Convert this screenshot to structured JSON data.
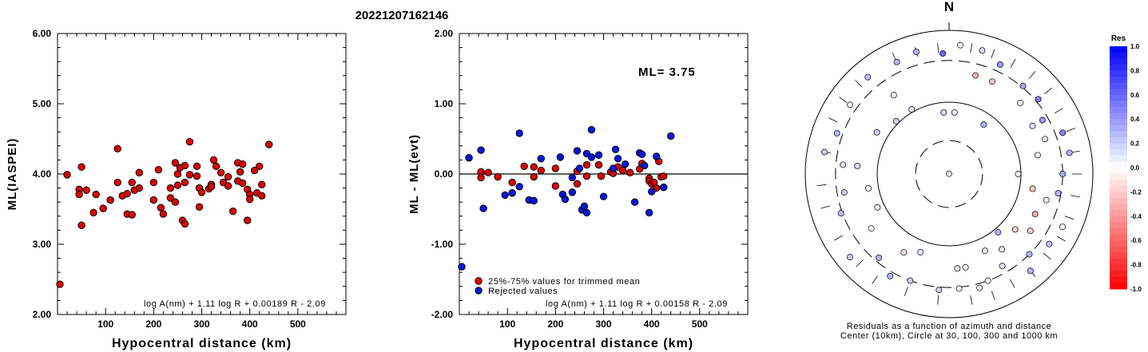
{
  "title": "20221207162146",
  "colors": {
    "red": "#e00000",
    "blue": "#0018e0",
    "black": "#000000"
  },
  "chart_data": [
    {
      "type": "scatter",
      "xlabel": "Hypocentral distance (km)",
      "ylabel": "ML(IASPEI)",
      "xlim": [
        0,
        600
      ],
      "ylim": [
        2.0,
        6.0
      ],
      "x_ticks": [
        100,
        200,
        300,
        400,
        500
      ],
      "y_ticks": [
        "2.00",
        "3.00",
        "4.00",
        "5.00",
        "6.00"
      ],
      "formula": "log A(nm) + 1.11 log R + 0.00189 R - 2.09",
      "series": [
        {
          "color": "red",
          "points": [
            [
              5,
              2.43
            ],
            [
              20,
              3.99
            ],
            [
              45,
              3.78
            ],
            [
              45,
              3.71
            ],
            [
              50,
              4.1
            ],
            [
              50,
              3.27
            ],
            [
              60,
              3.77
            ],
            [
              75,
              3.45
            ],
            [
              80,
              3.71
            ],
            [
              95,
              3.51
            ],
            [
              110,
              3.63
            ],
            [
              125,
              4.36
            ],
            [
              125,
              3.88
            ],
            [
              135,
              3.69
            ],
            [
              145,
              3.43
            ],
            [
              145,
              3.72
            ],
            [
              155,
              3.42
            ],
            [
              155,
              3.88
            ],
            [
              160,
              3.77
            ],
            [
              170,
              4.02
            ],
            [
              170,
              3.8
            ],
            [
              200,
              3.88
            ],
            [
              200,
              3.63
            ],
            [
              210,
              4.06
            ],
            [
              215,
              3.52
            ],
            [
              220,
              3.43
            ],
            [
              235,
              3.8
            ],
            [
              235,
              3.66
            ],
            [
              245,
              3.6
            ],
            [
              245,
              4.16
            ],
            [
              250,
              3.84
            ],
            [
              250,
              4.0
            ],
            [
              255,
              4.09
            ],
            [
              260,
              3.34
            ],
            [
              265,
              3.29
            ],
            [
              265,
              4.12
            ],
            [
              265,
              3.88
            ],
            [
              275,
              4.46
            ],
            [
              275,
              3.99
            ],
            [
              290,
              4.11
            ],
            [
              290,
              3.97
            ],
            [
              295,
              3.8
            ],
            [
              295,
              3.53
            ],
            [
              300,
              3.74
            ],
            [
              315,
              3.79
            ],
            [
              320,
              3.85
            ],
            [
              320,
              3.82
            ],
            [
              325,
              4.2
            ],
            [
              330,
              4.11
            ],
            [
              340,
              4.02
            ],
            [
              345,
              3.88
            ],
            [
              355,
              3.96
            ],
            [
              355,
              3.83
            ],
            [
              365,
              3.47
            ],
            [
              375,
              4.16
            ],
            [
              375,
              3.9
            ],
            [
              380,
              4.03
            ],
            [
              385,
              4.14
            ],
            [
              385,
              3.87
            ],
            [
              395,
              3.78
            ],
            [
              395,
              3.34
            ],
            [
              400,
              3.71
            ],
            [
              400,
              3.64
            ],
            [
              410,
              4.05
            ],
            [
              415,
              3.73
            ],
            [
              420,
              4.11
            ],
            [
              425,
              3.85
            ],
            [
              425,
              3.69
            ],
            [
              440,
              4.42
            ]
          ]
        }
      ]
    },
    {
      "type": "scatter",
      "xlabel": "Hypocentral distance (km)",
      "ylabel": "ML - ML(evt)",
      "xlim": [
        0,
        600
      ],
      "ylim": [
        -2.0,
        2.0
      ],
      "x_ticks": [
        100,
        200,
        300,
        400,
        500
      ],
      "y_ticks": [
        "-2.00",
        "-1.00",
        "0.00",
        "1.00",
        "2.00"
      ],
      "zero_line": 0,
      "annotation": "ML= 3.75",
      "legend": [
        {
          "label": "25%-75% values for trimmed mean",
          "color": "red"
        },
        {
          "label": "Rejected values",
          "color": "blue"
        }
      ],
      "formula": "log A(nm) + 1.11 log R + 0.00158 R - 2.09",
      "series": [
        {
          "color": "red",
          "points": [
            [
              45,
              0.03
            ],
            [
              45,
              -0.05
            ],
            [
              60,
              0.02
            ],
            [
              80,
              -0.04
            ],
            [
              110,
              -0.12
            ],
            [
              135,
              0.11
            ],
            [
              155,
              0.1
            ],
            [
              155,
              -0.04
            ],
            [
              170,
              0.05
            ],
            [
              200,
              0.08
            ],
            [
              200,
              -0.17
            ],
            [
              245,
              0.04
            ],
            [
              245,
              -0.14
            ],
            [
              265,
              0.13
            ],
            [
              265,
              -0.03
            ],
            [
              290,
              0.13
            ],
            [
              295,
              -0.03
            ],
            [
              315,
              0.03
            ],
            [
              320,
              0.01
            ],
            [
              330,
              0.1
            ],
            [
              340,
              0.05
            ],
            [
              355,
              0.02
            ],
            [
              375,
              0.07
            ],
            [
              380,
              0.15
            ],
            [
              395,
              -0.06
            ],
            [
              395,
              -0.1
            ],
            [
              400,
              -0.14
            ],
            [
              405,
              -0.12
            ],
            [
              410,
              -0.2
            ],
            [
              415,
              0.18
            ],
            [
              420,
              -0.04
            ],
            [
              425,
              -0.19
            ],
            [
              425,
              -0.03
            ]
          ]
        },
        {
          "color": "blue",
          "points": [
            [
              5,
              -1.32
            ],
            [
              20,
              0.23
            ],
            [
              45,
              0.34
            ],
            [
              50,
              -0.49
            ],
            [
              95,
              -0.3
            ],
            [
              110,
              -0.27
            ],
            [
              125,
              0.58
            ],
            [
              125,
              -0.18
            ],
            [
              145,
              -0.37
            ],
            [
              155,
              -0.38
            ],
            [
              170,
              0.22
            ],
            [
              210,
              0.24
            ],
            [
              215,
              -0.29
            ],
            [
              220,
              -0.36
            ],
            [
              235,
              -0.05
            ],
            [
              235,
              -0.26
            ],
            [
              245,
              0.33
            ],
            [
              250,
              0.08
            ],
            [
              255,
              -0.51
            ],
            [
              260,
              -0.46
            ],
            [
              265,
              0.29
            ],
            [
              265,
              -0.55
            ],
            [
              275,
              0.63
            ],
            [
              275,
              0.24
            ],
            [
              290,
              0.27
            ],
            [
              300,
              -0.32
            ],
            [
              320,
              0.08
            ],
            [
              325,
              0.35
            ],
            [
              330,
              0.22
            ],
            [
              345,
              0.14
            ],
            [
              365,
              -0.4
            ],
            [
              375,
              0.3
            ],
            [
              380,
              0.28
            ],
            [
              385,
              0.12
            ],
            [
              395,
              -0.55
            ],
            [
              400,
              -0.25
            ],
            [
              410,
              0.25
            ],
            [
              425,
              -0.19
            ],
            [
              440,
              0.54
            ]
          ]
        }
      ]
    },
    {
      "type": "polar-scatter",
      "north_label": "N",
      "caption_line1": "Residuals as a function of azimuth and distance",
      "caption_line2": "Center (10km), Circle at 30, 100, 300 and 1000 km",
      "colorbar_title": "Res",
      "colorbar_ticks": [
        "1.0",
        "0.8",
        "0.6",
        "0.4",
        "0.2",
        "0.0",
        "-0.2",
        "-0.4",
        "-0.6",
        "-0.8",
        "-1.0"
      ],
      "range": [
        -1.0,
        1.0
      ],
      "points": [
        [
          0,
          0.2,
          0.1
        ],
        [
          -5,
          43,
          0.15
        ],
        [
          5,
          43,
          0.1
        ],
        [
          -30,
          52,
          0.1
        ],
        [
          -35,
          67,
          0.05
        ],
        [
          -45,
          52,
          0.2
        ],
        [
          -60,
          58,
          0.2
        ],
        [
          -85,
          64,
          0.15
        ],
        [
          -100,
          57,
          0.0
        ],
        [
          -115,
          55,
          0.05
        ],
        [
          -125,
          66,
          0.0
        ],
        [
          -150,
          63,
          -0.1
        ],
        [
          -160,
          58,
          0.1
        ],
        [
          170,
          66,
          0.05
        ],
        [
          175,
          66,
          0.1
        ],
        [
          155,
          59,
          -0.05
        ],
        [
          145,
          64,
          0.1
        ],
        [
          130,
          60,
          -0.2
        ],
        [
          140,
          53,
          0.3
        ],
        [
          125,
          69,
          -0.2
        ],
        [
          115,
          66,
          -0.35
        ],
        [
          105,
          70,
          -0.1
        ],
        [
          100,
          59,
          -0.2
        ],
        [
          90,
          48,
          -0.05
        ],
        [
          78,
          63,
          -0.05
        ],
        [
          70,
          71,
          -0.1
        ],
        [
          60,
          67,
          0.1
        ],
        [
          45,
          70,
          -0.05
        ],
        [
          35,
          42,
          0.3
        ],
        [
          25,
          71,
          -0.25
        ],
        [
          15,
          71,
          -0.3
        ],
        [
          -3,
          84,
          0.6
        ],
        [
          -15,
          88,
          0.3
        ],
        [
          -25,
          86,
          0.3
        ],
        [
          -40,
          88,
          0.25
        ],
        [
          -55,
          84,
          0.05
        ],
        [
          -70,
          83,
          0.3
        ],
        [
          -80,
          88,
          0.2
        ],
        [
          -85,
          74,
          0.1
        ],
        [
          -100,
          74,
          0.2
        ],
        [
          -110,
          80,
          0.25
        ],
        [
          -130,
          90,
          0.2
        ],
        [
          -140,
          76,
          0.3
        ],
        [
          -150,
          82,
          0.3
        ],
        [
          -160,
          79,
          0.2
        ],
        [
          -175,
          81,
          0.2
        ],
        [
          175,
          80,
          0.05
        ],
        [
          165,
          82,
          0.05
        ],
        [
          160,
          79,
          0.0
        ],
        [
          150,
          74,
          0.1
        ],
        [
          140,
          88,
          0.3
        ],
        [
          135,
          79,
          0.3
        ],
        [
          125,
          85,
          0.25
        ],
        [
          115,
          87,
          0.05
        ],
        [
          100,
          77,
          0.3
        ],
        [
          90,
          79,
          0.35
        ],
        [
          80,
          85,
          0.3
        ],
        [
          70,
          84,
          0.5
        ],
        [
          60,
          75,
          0.4
        ],
        [
          50,
          81,
          0.5
        ],
        [
          40,
          80,
          0.35
        ],
        [
          25,
          84,
          0.4
        ],
        [
          15,
          89,
          0.15
        ],
        [
          5,
          90,
          0.0
        ]
      ],
      "tick_marks": [
        [
          -5,
          88
        ],
        [
          -15,
          88
        ],
        [
          -25,
          90
        ],
        [
          -45,
          89
        ],
        [
          -55,
          90
        ],
        [
          -65,
          89
        ],
        [
          -80,
          87
        ],
        [
          -95,
          89
        ],
        [
          -105,
          89
        ],
        [
          -120,
          89
        ],
        [
          -135,
          88
        ],
        [
          -145,
          90
        ],
        [
          -160,
          87
        ],
        [
          -175,
          88
        ],
        [
          170,
          89
        ],
        [
          160,
          90
        ],
        [
          150,
          88
        ],
        [
          140,
          90
        ],
        [
          130,
          89
        ],
        [
          120,
          90
        ],
        [
          110,
          89
        ],
        [
          100,
          89
        ],
        [
          90,
          89
        ],
        [
          80,
          89
        ],
        [
          70,
          90
        ],
        [
          60,
          88
        ],
        [
          50,
          90
        ],
        [
          40,
          90
        ],
        [
          30,
          89
        ],
        [
          20,
          89
        ],
        [
          10,
          89
        ]
      ]
    }
  ]
}
